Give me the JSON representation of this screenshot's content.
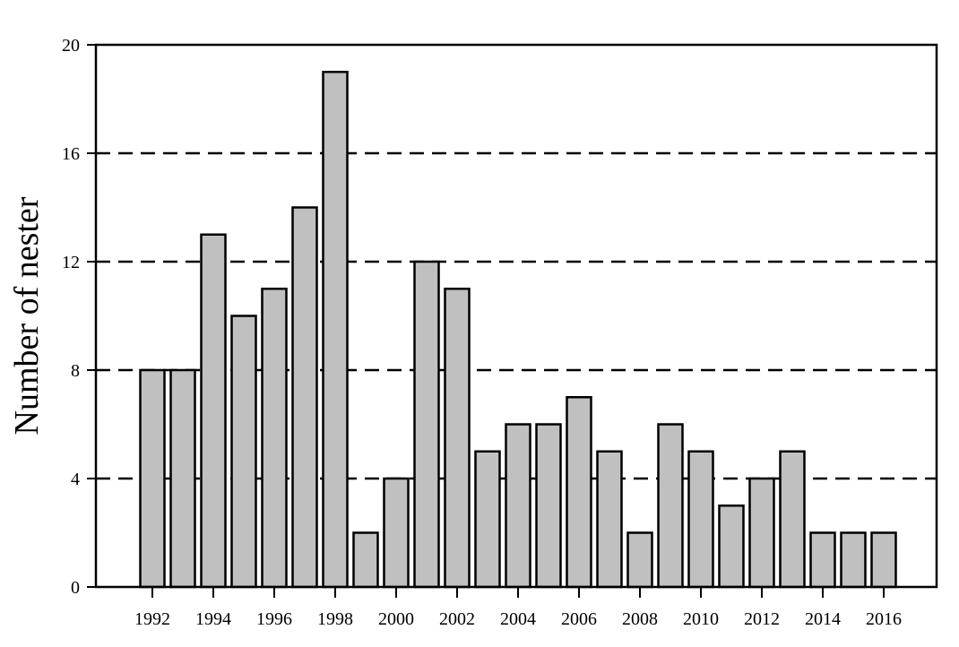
{
  "chart_data": {
    "type": "bar",
    "title": "",
    "xlabel": "",
    "ylabel": "Number of nester",
    "ylim": [
      0,
      20
    ],
    "yticks": [
      0,
      4,
      8,
      12,
      16,
      20
    ],
    "grid_values": [
      4,
      8,
      12,
      16
    ],
    "grid_style": "dashed horizontal",
    "categories": [
      "1992",
      "1993",
      "1994",
      "1995",
      "1996",
      "1997",
      "1998",
      "1999",
      "2000",
      "2001",
      "2002",
      "2003",
      "2004",
      "2005",
      "2006",
      "2007",
      "2008",
      "2009",
      "2010",
      "2011",
      "2012",
      "2013",
      "2014",
      "2015",
      "2016"
    ],
    "xtick_labels": [
      "1992",
      "1994",
      "1996",
      "1998",
      "2000",
      "2002",
      "2004",
      "2006",
      "2008",
      "2010",
      "2012",
      "2014",
      "2016"
    ],
    "values": [
      8,
      8,
      13,
      10,
      11,
      14,
      19,
      2,
      4,
      12,
      11,
      5,
      6,
      6,
      7,
      5,
      2,
      6,
      5,
      3,
      4,
      5,
      2,
      2,
      2
    ],
    "bar_color": "#c0c0c0",
    "edge_color": "#000000"
  }
}
